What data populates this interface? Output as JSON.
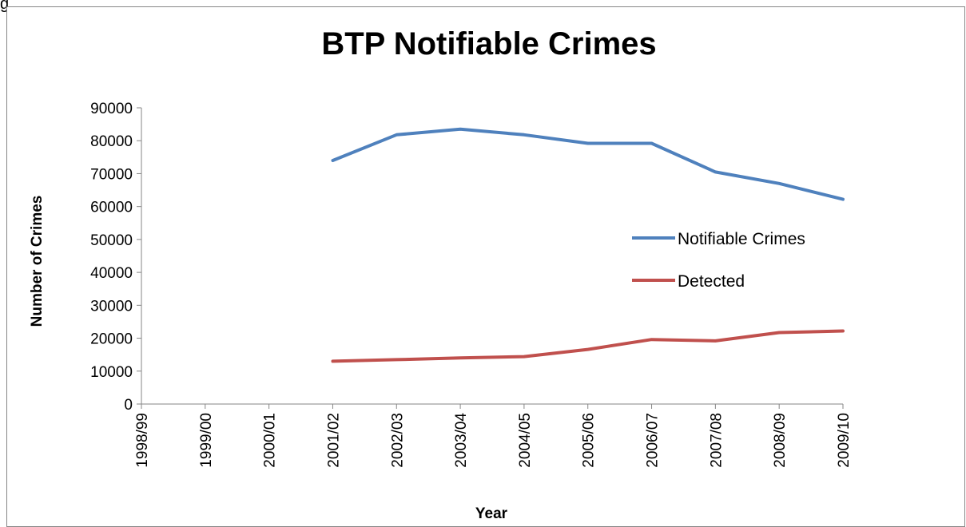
{
  "corner_label": "g",
  "chart_data": {
    "type": "line",
    "title": "BTP Notifiable Crimes",
    "xlabel": "Year",
    "ylabel": "Number of Crimes",
    "categories": [
      "1998/99",
      "1999/00",
      "2000/01",
      "2001/02",
      "2002/03",
      "2003/04",
      "2004/05",
      "2005/06",
      "2006/07",
      "2007/08",
      "2008/09",
      "2009/10"
    ],
    "ylim": [
      0,
      90000
    ],
    "yticks": [
      0,
      10000,
      20000,
      30000,
      40000,
      50000,
      60000,
      70000,
      80000,
      90000
    ],
    "grid": false,
    "legend_position": "right",
    "series": [
      {
        "name": "Notifiable Crimes",
        "color": "#4F81BD",
        "values": [
          null,
          null,
          null,
          74000,
          81800,
          83500,
          81800,
          79200,
          79200,
          70500,
          67000,
          62200
        ]
      },
      {
        "name": "Detected",
        "color": "#C0504D",
        "values": [
          null,
          null,
          null,
          13000,
          13500,
          14000,
          14400,
          16600,
          19600,
          19200,
          21700,
          22200
        ]
      }
    ]
  }
}
